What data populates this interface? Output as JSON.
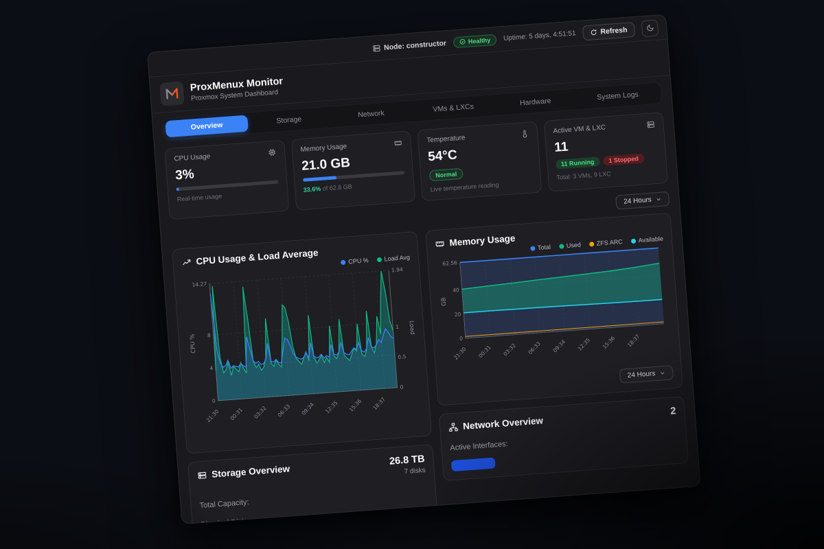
{
  "topbar": {
    "node_label": "Node: constructor",
    "health_badge": "Healthy",
    "uptime": "Uptime: 5 days, 4:51:51",
    "refresh_label": "Refresh"
  },
  "header": {
    "title": "ProxMenux Monitor",
    "subtitle": "Proxmox System Dashboard"
  },
  "tabs": [
    {
      "label": "Overview",
      "active": true
    },
    {
      "label": "Storage",
      "active": false
    },
    {
      "label": "Network",
      "active": false
    },
    {
      "label": "VMs & LXCs",
      "active": false
    },
    {
      "label": "Hardware",
      "active": false
    },
    {
      "label": "System Logs",
      "active": false
    }
  ],
  "stats": {
    "cpu": {
      "title": "CPU Usage",
      "value": "3%",
      "percent": 3,
      "caption": "Real-time usage"
    },
    "memory": {
      "title": "Memory Usage",
      "value": "21.0 GB",
      "percent": 33.6,
      "caption_pct": "33.6%",
      "caption_rest": " of 62.6 GB"
    },
    "temperature": {
      "title": "Temperature",
      "value": "54°C",
      "badge": "Normal",
      "caption": "Live temperature reading"
    },
    "vms": {
      "title": "Active VM & LXC",
      "value": "11",
      "running_badge": "11 Running",
      "stopped_badge": "1 Stopped",
      "caption": "Total: 3 VMs, 9 LXC"
    }
  },
  "time_range": {
    "label": "24 Hours"
  },
  "storage": {
    "title": "Storage Overview",
    "value": "26.8 TB",
    "subvalue": "7 disks",
    "rows": {
      "0": "Total Capacity:",
      "1": "Physical Disks:"
    }
  },
  "network": {
    "title": "Network Overview",
    "value": "2",
    "row": "Active Interfaces:"
  },
  "colors": {
    "accent_blue": "#3b82f6",
    "green": "#10b981",
    "cyan": "#22d3ee",
    "orange": "#f59e0b",
    "red": "#ef4444"
  },
  "chart_data": [
    {
      "type": "line",
      "title": "CPU Usage & Load Average",
      "legend_position": "top-right",
      "grid": true,
      "x_ticks": [
        "21:30",
        "00:31",
        "03:32",
        "06:33",
        "09:34",
        "12:35",
        "15:36",
        "18:37"
      ],
      "y_left": {
        "label": "CPU %",
        "ticks": [
          "0",
          "4",
          "8",
          "14.27"
        ],
        "tick_values": [
          0,
          4,
          8,
          14.27
        ],
        "max": 14.27
      },
      "y_right": {
        "label": "Load",
        "ticks": [
          "0",
          "0.5",
          "1",
          "1.94"
        ],
        "tick_values": [
          0,
          0.5,
          1,
          1.94
        ],
        "max": 1.94
      },
      "series": [
        {
          "name": "CPU %",
          "axis": "left",
          "color": "#3b82f6",
          "values": [
            13,
            6,
            4.5,
            4,
            4.2,
            4.8,
            3.8,
            4.1,
            4,
            3.9,
            4.3,
            4,
            3.8,
            7.5,
            6,
            4.5,
            4.2,
            4.4,
            4,
            4.1,
            4.6,
            6.5,
            4.3,
            4.2,
            4.5,
            4.1,
            4,
            5.5,
            7,
            6.8,
            6,
            5,
            4.6,
            4.4,
            4.3,
            4.5,
            5,
            4.4,
            6.2,
            4.6,
            4.3,
            4.4,
            4.7,
            4.2,
            4.5,
            4.3,
            5.8,
            4.6,
            4.5,
            4.8,
            6,
            4.7,
            4.5,
            4.4,
            4.8,
            5.2,
            5,
            5.8,
            4.8,
            4.6,
            5,
            6.3,
            5.2,
            5,
            5.4,
            6,
            5.6,
            6.5,
            7.2,
            6.8,
            6.2,
            6
          ]
        },
        {
          "name": "Load Avg",
          "axis": "right",
          "color": "#10b981",
          "values": [
            0.5,
            1.9,
            0.7,
            0.45,
            0.5,
            0.62,
            0.4,
            0.55,
            0.5,
            0.45,
            0.6,
            0.5,
            0.42,
            1.85,
            1.3,
            0.6,
            0.5,
            0.55,
            0.45,
            0.5,
            0.65,
            1.3,
            0.55,
            0.5,
            0.6,
            0.52,
            0.48,
            0.95,
            1.5,
            1.45,
            1.2,
            0.8,
            0.6,
            0.55,
            0.5,
            0.6,
            0.7,
            0.55,
            1.3,
            0.6,
            0.5,
            0.55,
            0.62,
            0.5,
            0.58,
            0.5,
            1.1,
            0.6,
            0.55,
            0.65,
            1.2,
            0.6,
            0.55,
            0.5,
            0.6,
            0.7,
            0.65,
            1.1,
            0.6,
            0.55,
            0.65,
            1.3,
            0.7,
            0.6,
            0.75,
            1.2,
            0.9,
            1.5,
            1.94,
            1.6,
            1.1,
            0.95
          ]
        }
      ]
    },
    {
      "type": "area",
      "title": "Memory Usage",
      "legend_position": "top-right",
      "grid": true,
      "x_ticks": [
        "21:30",
        "00:31",
        "03:32",
        "06:33",
        "09:34",
        "12:35",
        "15:36",
        "18:37"
      ],
      "y": {
        "label": "GB",
        "ticks": [
          "0",
          "20",
          "40",
          "62.56"
        ],
        "tick_values": [
          0,
          20,
          40,
          62.56
        ],
        "max": 62.56
      },
      "series": [
        {
          "name": "Total",
          "color": "#3b82f6",
          "values": [
            62.56,
            62.56,
            62.56,
            62.56,
            62.56,
            62.56,
            62.56,
            62.56,
            62.56
          ]
        },
        {
          "name": "Used",
          "color": "#10b981",
          "values": [
            40.5,
            41.5,
            42.5,
            43.5,
            44.5,
            45.5,
            46.5,
            48,
            50
          ]
        },
        {
          "name": "ZFS ARC",
          "color": "#f59e0b",
          "values": [
            1.5,
            1.5,
            1.5,
            1.5,
            1.5,
            1.5,
            1.5,
            1.5,
            1.5
          ]
        },
        {
          "name": "Available",
          "color": "#22d3ee",
          "values": [
            21,
            21,
            20.9,
            20.8,
            20.6,
            20.4,
            20.2,
            20,
            20
          ]
        }
      ]
    }
  ]
}
